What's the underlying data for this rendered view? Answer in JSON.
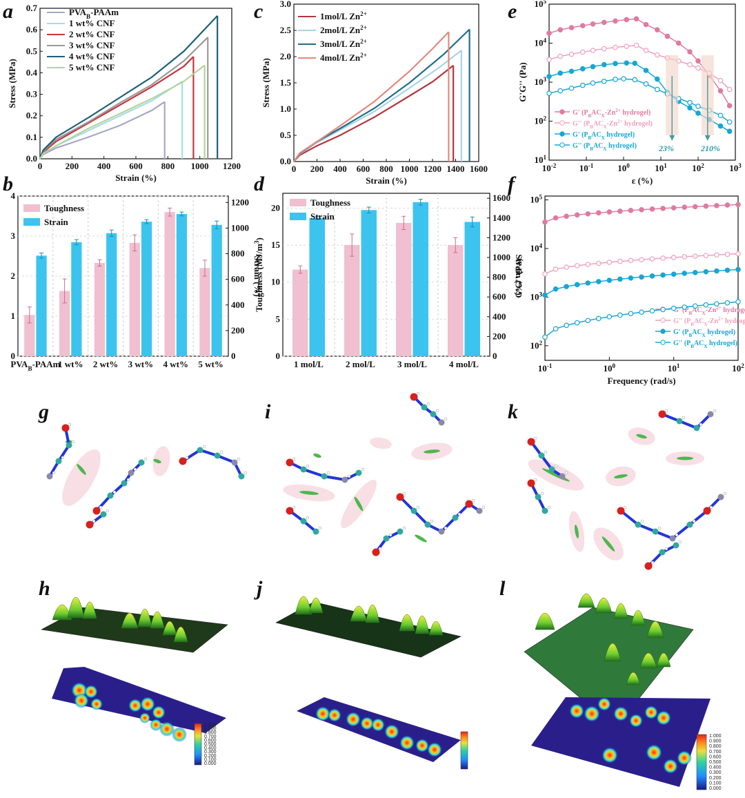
{
  "panel_labels": {
    "a": "a",
    "b": "b",
    "c": "c",
    "d": "d",
    "e": "e",
    "f": "f",
    "g": "g",
    "h": "h",
    "i": "i",
    "j": "j",
    "k": "k",
    "l": "l"
  },
  "annotations": {
    "e_left": "23%",
    "e_right": "210%"
  },
  "colorbar_ticks": [
    "1.000",
    "0.900",
    "0.800",
    "0.700",
    "0.600",
    "0.500",
    "0.400",
    "0.300",
    "0.200",
    "0.100",
    "0.000"
  ],
  "colors": {
    "pink": "#e07aa0",
    "pink_light": "#f0a0bc",
    "blue": "#14a7d8",
    "bar_pink": "#f0bfd0",
    "bar_blue": "#3cc4ef"
  },
  "chart_data": [
    {
      "id": "a",
      "type": "line",
      "xlabel": "Strain (%)",
      "ylabel": "Stress (MPa)",
      "xlim": [
        0,
        1200
      ],
      "ylim": [
        0,
        0.7
      ],
      "xticks": [
        0,
        200,
        400,
        600,
        800,
        1000,
        1200
      ],
      "yticks": [
        0.0,
        0.1,
        0.2,
        0.3,
        0.4,
        0.5,
        0.6,
        0.7
      ],
      "series": [
        {
          "name": "PVA",
          "sub": "B",
          "suffix": "-PAAm",
          "color": "#a7a6c8",
          "break": [
            780,
            0.265
          ],
          "points": [
            [
              0,
              0
            ],
            [
              20,
              0.02
            ],
            [
              100,
              0.05
            ],
            [
              300,
              0.1
            ],
            [
              500,
              0.155
            ],
            [
              700,
              0.225
            ],
            [
              780,
              0.265
            ]
          ]
        },
        {
          "name": "1 wt% CNF",
          "color": "#a8dcea",
          "break": [
            890,
            0.36
          ],
          "points": [
            [
              0,
              0
            ],
            [
              20,
              0.025
            ],
            [
              100,
              0.06
            ],
            [
              300,
              0.13
            ],
            [
              500,
              0.2
            ],
            [
              700,
              0.27
            ],
            [
              890,
              0.36
            ]
          ]
        },
        {
          "name": "2 wt% CNF",
          "color": "#c8343c",
          "break": [
            960,
            0.475
          ],
          "points": [
            [
              0,
              0
            ],
            [
              20,
              0.03
            ],
            [
              100,
              0.08
            ],
            [
              300,
              0.165
            ],
            [
              500,
              0.25
            ],
            [
              700,
              0.335
            ],
            [
              900,
              0.43
            ],
            [
              960,
              0.475
            ]
          ]
        },
        {
          "name": "3 wt% CNF",
          "color": "#9a9a9a",
          "break": [
            1050,
            0.565
          ],
          "points": [
            [
              0,
              0
            ],
            [
              20,
              0.035
            ],
            [
              100,
              0.09
            ],
            [
              300,
              0.17
            ],
            [
              500,
              0.26
            ],
            [
              700,
              0.345
            ],
            [
              900,
              0.455
            ],
            [
              1050,
              0.565
            ]
          ]
        },
        {
          "name": "4 wt% CNF",
          "color": "#1c5f78",
          "break": [
            1110,
            0.665
          ],
          "points": [
            [
              0,
              0
            ],
            [
              20,
              0.04
            ],
            [
              100,
              0.1
            ],
            [
              300,
              0.19
            ],
            [
              500,
              0.285
            ],
            [
              700,
              0.38
            ],
            [
              900,
              0.5
            ],
            [
              1110,
              0.665
            ]
          ]
        },
        {
          "name": "5 wt% CNF",
          "color": "#b4d49a",
          "break": [
            1030,
            0.435
          ],
          "points": [
            [
              0,
              0
            ],
            [
              20,
              0.025
            ],
            [
              100,
              0.06
            ],
            [
              300,
              0.14
            ],
            [
              500,
              0.21
            ],
            [
              700,
              0.28
            ],
            [
              900,
              0.36
            ],
            [
              1030,
              0.435
            ]
          ]
        }
      ]
    },
    {
      "id": "b",
      "type": "bar",
      "categories": [
        {
          "t": "PVA",
          "sub": "B",
          "tail": "-PAAm"
        },
        {
          "t": "1 wt%"
        },
        {
          "t": "2 wt%"
        },
        {
          "t": "3 wt%"
        },
        {
          "t": "4 wt%"
        },
        {
          "t": "5 wt%"
        }
      ],
      "ylabel": "Toughness (MJ/m",
      "ylabel_sup": "3",
      "ylabel_end": ")",
      "y2label": "Strain (%)",
      "ylim": [
        0,
        4
      ],
      "y2lim": [
        0,
        1250
      ],
      "yticks": [
        0,
        1,
        2,
        3,
        4
      ],
      "y2ticks": [
        0,
        200,
        400,
        600,
        800,
        1000,
        1200
      ],
      "series": [
        {
          "name": "Toughness",
          "color": "#f0bfd0",
          "values": [
            1.03,
            1.63,
            2.33,
            2.83,
            3.6,
            2.2
          ],
          "err": [
            0.2,
            0.3,
            0.08,
            0.2,
            0.1,
            0.2
          ]
        },
        {
          "name": "Strain",
          "color": "#3cc4ef",
          "values": [
            785,
            890,
            960,
            1050,
            1110,
            1025
          ],
          "err": [
            20,
            20,
            25,
            15,
            15,
            30
          ]
        }
      ]
    },
    {
      "id": "c",
      "type": "line",
      "xlabel": "Strain (%)",
      "ylabel": "Stress (MPa)",
      "xlim": [
        0,
        1600
      ],
      "ylim": [
        0,
        3.0
      ],
      "xticks": [
        0,
        200,
        400,
        600,
        800,
        1000,
        1200,
        1400,
        1600
      ],
      "yticks": [
        0.0,
        0.5,
        1.0,
        1.5,
        2.0,
        2.5,
        3.0
      ],
      "series": [
        {
          "name": "1mol/L Zn",
          "sup": "2+",
          "color": "#b5343c",
          "break": [
            1380,
            1.83
          ],
          "points": [
            [
              0,
              0
            ],
            [
              50,
              0.12
            ],
            [
              200,
              0.3
            ],
            [
              400,
              0.5
            ],
            [
              700,
              0.85
            ],
            [
              1000,
              1.25
            ],
            [
              1200,
              1.52
            ],
            [
              1380,
              1.83
            ]
          ]
        },
        {
          "name": "2mol/L Zn",
          "sup": "2+",
          "color": "#a8d4e8",
          "break": [
            1450,
            2.12
          ],
          "points": [
            [
              0,
              0
            ],
            [
              50,
              0.14
            ],
            [
              200,
              0.36
            ],
            [
              400,
              0.6
            ],
            [
              700,
              0.96
            ],
            [
              1000,
              1.4
            ],
            [
              1250,
              1.78
            ],
            [
              1450,
              2.12
            ]
          ]
        },
        {
          "name": "3mol/L Zn",
          "sup": "2+",
          "color": "#1e6e88",
          "break": [
            1520,
            2.52
          ],
          "points": [
            [
              0,
              0
            ],
            [
              50,
              0.15
            ],
            [
              200,
              0.38
            ],
            [
              400,
              0.63
            ],
            [
              700,
              1.02
            ],
            [
              1000,
              1.5
            ],
            [
              1300,
              2.05
            ],
            [
              1520,
              2.52
            ]
          ]
        },
        {
          "name": "4mol/L Zn",
          "sup": "2+",
          "color": "#e5887c",
          "break": [
            1340,
            2.47
          ],
          "points": [
            [
              0,
              0
            ],
            [
              50,
              0.16
            ],
            [
              200,
              0.38
            ],
            [
              400,
              0.68
            ],
            [
              700,
              1.15
            ],
            [
              1000,
              1.72
            ],
            [
              1200,
              2.15
            ],
            [
              1340,
              2.47
            ]
          ]
        }
      ]
    },
    {
      "id": "d",
      "type": "bar",
      "categories": [
        {
          "t": "1 mol/L"
        },
        {
          "t": "2 mol/L"
        },
        {
          "t": "3 mol/L"
        },
        {
          "t": "4 mol/L"
        }
      ],
      "ylabel": "Toughness (MJ/m",
      "ylabel_sup": "3",
      "ylabel_end": ")",
      "y2label": "Strain (%)",
      "ylim": [
        0,
        22
      ],
      "y2lim": [
        0,
        1650
      ],
      "yticks": [
        0,
        5,
        10,
        15,
        20
      ],
      "y2ticks": [
        0,
        200,
        400,
        600,
        800,
        1000,
        1200,
        1400,
        1600
      ],
      "series": [
        {
          "name": "Toughness",
          "color": "#f0bfd0",
          "values": [
            11.7,
            15.0,
            18.0,
            15.0
          ],
          "err": [
            0.5,
            1.5,
            0.9,
            1.0
          ]
        },
        {
          "name": "Strain",
          "color": "#3cc4ef",
          "values": [
            1400,
            1480,
            1560,
            1360
          ],
          "err": [
            15,
            30,
            30,
            50
          ]
        }
      ]
    },
    {
      "id": "e",
      "type": "line",
      "xscale": "log",
      "yscale": "log",
      "xlabel": "ε (%)",
      "ylabel": "G'G'' (Pa)",
      "xlim": [
        0.01,
        1000
      ],
      "ylim": [
        10,
        100000
      ],
      "xticks": [
        0.01,
        0.1,
        1,
        10,
        100,
        1000
      ],
      "xtick_exp": [
        "-2",
        "-1",
        "0",
        "1",
        "2",
        "3"
      ],
      "yticks": [
        10,
        100,
        1000,
        10000,
        100000
      ],
      "ytick_exp": [
        "1",
        "2",
        "3",
        "4",
        "5"
      ],
      "series": [
        {
          "name": "G' (P",
          "sub": "B",
          "mid": "AC",
          "sub2": "X",
          "tail": "-Zn",
          "tsup": "2+",
          "end": " hydrogel)",
          "color": "#e07aa0",
          "filled": true,
          "points": [
            [
              0.01,
              18000
            ],
            [
              0.02,
              22000
            ],
            [
              0.04,
              25000
            ],
            [
              0.08,
              28000
            ],
            [
              0.15,
              31000
            ],
            [
              0.3,
              34000
            ],
            [
              0.6,
              37000
            ],
            [
              1.2,
              40000
            ],
            [
              2.2,
              42000
            ],
            [
              4,
              30000
            ],
            [
              8,
              22000
            ],
            [
              15,
              15000
            ],
            [
              30,
              10000
            ],
            [
              60,
              6000
            ],
            [
              100,
              3500
            ],
            [
              200,
              1500
            ],
            [
              400,
              600
            ],
            [
              700,
              250
            ]
          ]
        },
        {
          "name": "G'' (P",
          "sub": "B",
          "mid": "AC",
          "sub2": "X",
          "tail": "-Zn",
          "tsup": "2+",
          "end": " hydrogel)",
          "color": "#f0a0bc",
          "filled": false,
          "points": [
            [
              0.01,
              3800
            ],
            [
              0.02,
              4600
            ],
            [
              0.04,
              5200
            ],
            [
              0.08,
              5900
            ],
            [
              0.15,
              6500
            ],
            [
              0.3,
              7200
            ],
            [
              0.6,
              7800
            ],
            [
              1.2,
              8300
            ],
            [
              2.2,
              8800
            ],
            [
              4,
              6500
            ],
            [
              8,
              5000
            ],
            [
              15,
              4200
            ],
            [
              30,
              3500
            ],
            [
              60,
              2800
            ],
            [
              100,
              2300
            ],
            [
              200,
              1700
            ],
            [
              400,
              1100
            ],
            [
              700,
              650
            ]
          ]
        },
        {
          "name": "G' (P",
          "sub": "B",
          "mid": "AC",
          "sub2": "X",
          "end": " hydrogel)",
          "color": "#14a7d8",
          "filled": true,
          "points": [
            [
              0.01,
              1400
            ],
            [
              0.02,
              1700
            ],
            [
              0.04,
              1900
            ],
            [
              0.08,
              2200
            ],
            [
              0.15,
              2500
            ],
            [
              0.3,
              2800
            ],
            [
              0.6,
              3000
            ],
            [
              1.2,
              3100
            ],
            [
              2,
              3050
            ],
            [
              4,
              2000
            ],
            [
              8,
              1200
            ],
            [
              15,
              550
            ],
            [
              30,
              320
            ],
            [
              60,
              220
            ],
            [
              100,
              160
            ],
            [
              200,
              110
            ],
            [
              400,
              75
            ],
            [
              700,
              55
            ]
          ]
        },
        {
          "name": "G'' (P",
          "sub": "B",
          "mid": "AC",
          "sub2": "X",
          "end": " hydrogel)",
          "color": "#14a7d8",
          "filled": false,
          "points": [
            [
              0.01,
              520
            ],
            [
              0.02,
              600
            ],
            [
              0.04,
              700
            ],
            [
              0.08,
              830
            ],
            [
              0.15,
              950
            ],
            [
              0.3,
              1050
            ],
            [
              0.6,
              1180
            ],
            [
              1,
              1220
            ],
            [
              2,
              1150
            ],
            [
              4,
              900
            ],
            [
              8,
              650
            ],
            [
              15,
              500
            ],
            [
              30,
              380
            ],
            [
              60,
              300
            ],
            [
              100,
              240
            ],
            [
              200,
              190
            ],
            [
              400,
              140
            ],
            [
              700,
              95
            ]
          ]
        }
      ]
    },
    {
      "id": "f",
      "type": "line",
      "xscale": "log",
      "yscale": "log",
      "xlabel": "Frequency (rad/s)",
      "ylabel": "G'G'' (Pa)",
      "xlim": [
        0.1,
        100
      ],
      "ylim": [
        50,
        120000
      ],
      "xticks": [
        0.1,
        1,
        10,
        100
      ],
      "xtick_exp": [
        "-1",
        "0",
        "1",
        "2"
      ],
      "yticks": [
        100,
        1000,
        10000,
        100000
      ],
      "ytick_exp": [
        "2",
        "3",
        "4",
        "5"
      ],
      "series": [
        {
          "name": "G' (P",
          "sub": "B",
          "mid": "AC",
          "sub2": "X",
          "tail": "-Zn",
          "tsup": "2+",
          "end": " hydrogel)",
          "color": "#e07aa0",
          "filled": true,
          "endpoints": [
            35000,
            80000
          ]
        },
        {
          "name": "G'' (P",
          "sub": "B",
          "mid": "AC",
          "sub2": "X",
          "tail": "-Zn",
          "tsup": "2+",
          "end": " hydrogel)",
          "color": "#f0a0bc",
          "filled": false,
          "endpoints": [
            3000,
            7800
          ]
        },
        {
          "name": "G' (P",
          "sub": "B",
          "mid": "AC",
          "sub2": "X",
          "end": " hydrogel)",
          "color": "#14a7d8",
          "filled": true,
          "endpoints": [
            1100,
            3700
          ]
        },
        {
          "name": "G'' (P",
          "sub": "B",
          "mid": "AC",
          "sub2": "X",
          "end": " hydrogel)",
          "color": "#14a7d8",
          "filled": false,
          "endpoints": [
            150,
            800
          ]
        }
      ]
    }
  ]
}
